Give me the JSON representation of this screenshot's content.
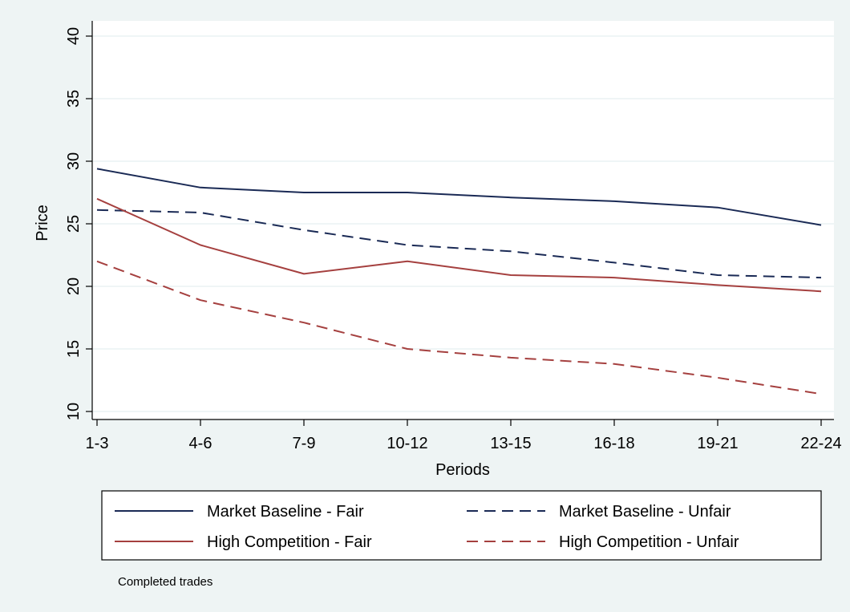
{
  "chart_data": {
    "type": "line",
    "xlabel": "Periods",
    "ylabel": "Price",
    "note": "Completed trades",
    "categories": [
      "1-3",
      "4-6",
      "7-9",
      "10-12",
      "13-15",
      "16-18",
      "19-21",
      "22-24"
    ],
    "ylim": [
      10,
      40
    ],
    "yticks": [
      10,
      15,
      20,
      25,
      30,
      35,
      40
    ],
    "grid": true,
    "legend_position": "bottom",
    "colors": {
      "background": "#eef4f4",
      "plot_background": "#ffffff",
      "navy": "#1a2a55",
      "maroon": "#a5403f"
    },
    "series": [
      {
        "name": "Market Baseline - Fair",
        "values": [
          29.4,
          27.9,
          27.5,
          27.5,
          27.1,
          26.8,
          26.3,
          24.9
        ],
        "color": "#1a2a55",
        "dash": "solid"
      },
      {
        "name": "Market Baseline - Unfair",
        "values": [
          26.1,
          25.9,
          24.5,
          23.3,
          22.8,
          21.9,
          20.9,
          20.7
        ],
        "color": "#1a2a55",
        "dash": "dashed"
      },
      {
        "name": "High Competition - Fair",
        "values": [
          27.0,
          23.3,
          21.0,
          22.0,
          20.9,
          20.7,
          20.1,
          19.6
        ],
        "color": "#a5403f",
        "dash": "solid"
      },
      {
        "name": "High Competition - Unfair",
        "values": [
          22.0,
          18.9,
          17.1,
          15.0,
          14.3,
          13.8,
          12.7,
          11.4
        ],
        "color": "#a5403f",
        "dash": "dashed"
      }
    ]
  }
}
